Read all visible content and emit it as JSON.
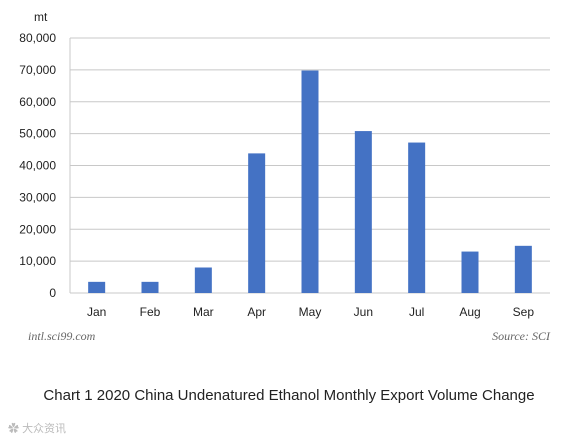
{
  "chart_data": {
    "type": "bar",
    "ylabel": "mt",
    "categories": [
      "Jan",
      "Feb",
      "Mar",
      "Apr",
      "May",
      "Jun",
      "Jul",
      "Aug",
      "Sep"
    ],
    "values": [
      3500,
      3500,
      8000,
      43800,
      69800,
      50800,
      47200,
      13000,
      14800
    ],
    "ylim": [
      0,
      80000
    ],
    "yticks": [
      "0",
      "10,000",
      "20,000",
      "30,000",
      "40,000",
      "50,000",
      "60,000",
      "70,000",
      "80,000"
    ],
    "grid": true,
    "bar_color": "#4472C4",
    "source_left": "intl.sci99.com",
    "source_right": "Source: SCI"
  },
  "caption": "Chart 1 2020 China Undenatured Ethanol Monthly Export Volume Change",
  "footer_mark": "大众资讯"
}
